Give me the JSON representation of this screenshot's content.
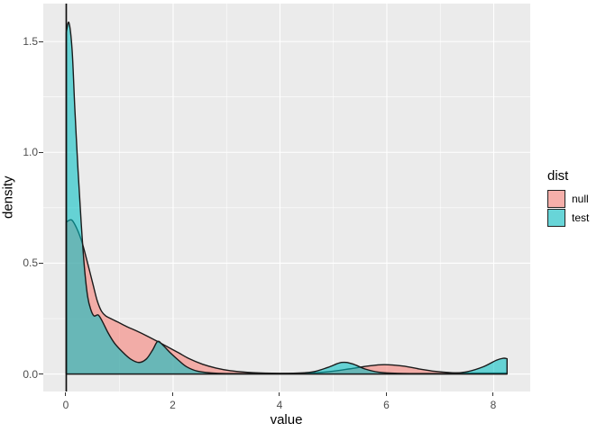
{
  "figure": {
    "background": "#FFFFFF",
    "panel_background": "#EBEBEB",
    "grid_color": "#FFFFFF",
    "tick_mark_color": "#333333",
    "tick_label_color": "#4D4D4D",
    "outline_color": "#1A1A1A"
  },
  "chart_data": {
    "type": "area",
    "subtype": "density",
    "title": "",
    "x_axis": {
      "title": "value",
      "ticks": [
        {
          "value": 0,
          "label": "0"
        },
        {
          "value": 2,
          "label": "2"
        },
        {
          "value": 4,
          "label": "4"
        },
        {
          "value": 6,
          "label": "6"
        },
        {
          "value": 8,
          "label": "8"
        }
      ],
      "minor": [
        1,
        3,
        5,
        7
      ]
    },
    "y_axis": {
      "title": "density",
      "ticks": [
        {
          "value": 0.0,
          "label": "0.0"
        },
        {
          "value": 0.5,
          "label": "0.5"
        },
        {
          "value": 1.0,
          "label": "1.0"
        },
        {
          "value": 1.5,
          "label": "1.5"
        }
      ],
      "minor": [
        0.25,
        0.75,
        1.25
      ]
    },
    "xlim": [
      -0.43,
      8.684
    ],
    "ylim": [
      -0.079,
      1.671
    ],
    "vline_x": 0,
    "x_truncate": 8.25,
    "legend": {
      "title": "dist",
      "position": "right",
      "entries": [
        {
          "label": "null",
          "series": "null"
        },
        {
          "label": "test",
          "series": "test"
        }
      ]
    },
    "series": [
      {
        "name": "null",
        "fill": "rgba(248,118,109,0.54)",
        "stroke": "#1a1a1a",
        "points": [
          [
            0,
            0.685
          ],
          [
            0.1,
            0.695
          ],
          [
            0.2,
            0.655
          ],
          [
            0.3,
            0.59
          ],
          [
            0.4,
            0.5
          ],
          [
            0.5,
            0.405
          ],
          [
            0.58,
            0.33
          ],
          [
            0.66,
            0.283
          ],
          [
            0.74,
            0.262
          ],
          [
            0.85,
            0.248
          ],
          [
            1.0,
            0.23
          ],
          [
            1.15,
            0.212
          ],
          [
            1.3,
            0.196
          ],
          [
            1.5,
            0.173
          ],
          [
            1.7,
            0.148
          ],
          [
            1.9,
            0.122
          ],
          [
            2.1,
            0.096
          ],
          [
            2.3,
            0.069
          ],
          [
            2.55,
            0.044
          ],
          [
            2.8,
            0.027
          ],
          [
            3.1,
            0.014
          ],
          [
            3.5,
            0.006
          ],
          [
            4.0,
            0.003
          ],
          [
            4.5,
            0.004
          ],
          [
            4.9,
            0.01
          ],
          [
            5.3,
            0.023
          ],
          [
            5.65,
            0.036
          ],
          [
            5.95,
            0.042
          ],
          [
            6.3,
            0.036
          ],
          [
            6.6,
            0.023
          ],
          [
            6.9,
            0.012
          ],
          [
            7.2,
            0.006
          ],
          [
            7.6,
            0.004
          ],
          [
            8.0,
            0.004
          ],
          [
            8.25,
            0.004
          ]
        ]
      },
      {
        "name": "test",
        "fill": "rgba(0,191,196,0.57)",
        "stroke": "#1a1a1a",
        "points": [
          [
            0,
            1.54
          ],
          [
            0.05,
            1.585
          ],
          [
            0.11,
            1.46
          ],
          [
            0.16,
            1.2
          ],
          [
            0.22,
            0.92
          ],
          [
            0.28,
            0.68
          ],
          [
            0.34,
            0.48
          ],
          [
            0.4,
            0.35
          ],
          [
            0.46,
            0.29
          ],
          [
            0.52,
            0.262
          ],
          [
            0.6,
            0.266
          ],
          [
            0.68,
            0.235
          ],
          [
            0.78,
            0.187
          ],
          [
            0.9,
            0.14
          ],
          [
            1.05,
            0.1
          ],
          [
            1.2,
            0.068
          ],
          [
            1.36,
            0.052
          ],
          [
            1.5,
            0.068
          ],
          [
            1.62,
            0.11
          ],
          [
            1.71,
            0.147
          ],
          [
            1.8,
            0.132
          ],
          [
            1.95,
            0.095
          ],
          [
            2.1,
            0.062
          ],
          [
            2.25,
            0.033
          ],
          [
            2.45,
            0.013
          ],
          [
            2.7,
            0.005
          ],
          [
            3.0,
            0.002
          ],
          [
            3.6,
            0.002
          ],
          [
            4.2,
            0.003
          ],
          [
            4.6,
            0.009
          ],
          [
            4.9,
            0.03
          ],
          [
            5.15,
            0.052
          ],
          [
            5.35,
            0.046
          ],
          [
            5.6,
            0.022
          ],
          [
            5.85,
            0.008
          ],
          [
            6.2,
            0.003
          ],
          [
            6.8,
            0.002
          ],
          [
            7.2,
            0.003
          ],
          [
            7.5,
            0.01
          ],
          [
            7.8,
            0.032
          ],
          [
            8.05,
            0.062
          ],
          [
            8.18,
            0.071
          ],
          [
            8.25,
            0.069
          ]
        ]
      }
    ]
  }
}
